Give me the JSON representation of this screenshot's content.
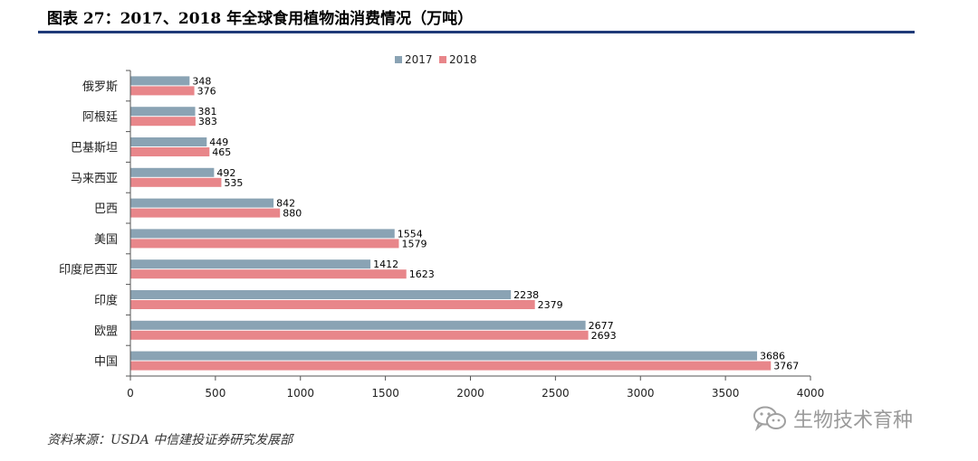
{
  "figure": {
    "title": "图表 27：2017、2018 年全球食用植物油消费情况（万吨）",
    "source": "资料来源：USDA    中信建投证券研究发展部",
    "watermark": "生物技术育种"
  },
  "colors": {
    "s2017": "#8aa3b4",
    "s2018": "#e8868a",
    "axis": "#555555",
    "title_rule": "#1f3a78"
  },
  "chart_data": {
    "type": "bar",
    "orientation": "horizontal",
    "title": "2017、2018 年全球食用植物油消费情况（万吨）",
    "categories": [
      "俄罗斯",
      "阿根廷",
      "巴基斯坦",
      "马来西亚",
      "巴西",
      "美国",
      "印度尼西亚",
      "印度",
      "欧盟",
      "中国"
    ],
    "series": [
      {
        "name": "2017",
        "values": [
          348,
          381,
          449,
          492,
          842,
          1554,
          1412,
          2238,
          2677,
          3686
        ]
      },
      {
        "name": "2018",
        "values": [
          376,
          383,
          465,
          535,
          880,
          1579,
          1623,
          2379,
          2693,
          3767
        ]
      }
    ],
    "xlim": [
      0,
      4000
    ],
    "xticks": [
      0,
      500,
      1000,
      1500,
      2000,
      2500,
      3000,
      3500,
      4000
    ],
    "legend_position": "top-center",
    "grid": false,
    "xlabel": "",
    "ylabel": ""
  }
}
